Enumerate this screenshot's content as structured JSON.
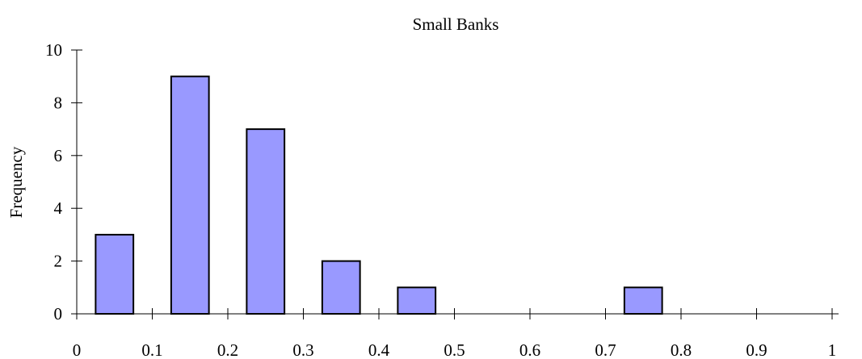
{
  "chart_data": {
    "type": "bar",
    "title": "Small Banks",
    "xlabel": "",
    "ylabel": "Frequency",
    "xlim": [
      0,
      1.0
    ],
    "ylim": [
      0,
      10
    ],
    "x_ticks": [
      "0",
      "0.1",
      "0.2",
      "0.3",
      "0.4",
      "0.5",
      "0.6",
      "0.7",
      "0.8",
      "0.9",
      "1"
    ],
    "y_ticks": [
      "0",
      "2",
      "4",
      "6",
      "8",
      "10"
    ],
    "bars": [
      {
        "x_start": 0.025,
        "x_end": 0.075,
        "value": 3
      },
      {
        "x_start": 0.125,
        "x_end": 0.175,
        "value": 9
      },
      {
        "x_start": 0.225,
        "x_end": 0.275,
        "value": 7
      },
      {
        "x_start": 0.325,
        "x_end": 0.375,
        "value": 2
      },
      {
        "x_start": 0.425,
        "x_end": 0.475,
        "value": 1
      },
      {
        "x_start": 0.725,
        "x_end": 0.775,
        "value": 1
      }
    ],
    "bar_color": "#9999ff",
    "grid": false
  }
}
